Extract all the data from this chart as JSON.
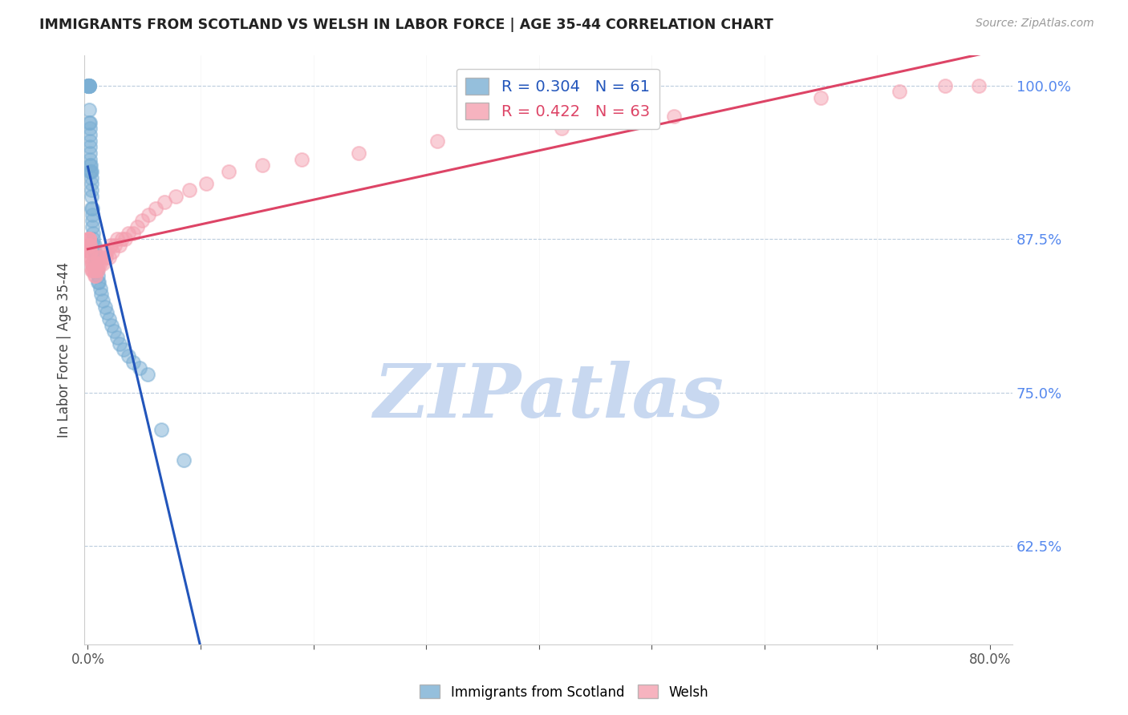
{
  "title": "IMMIGRANTS FROM SCOTLAND VS WELSH IN LABOR FORCE | AGE 35-44 CORRELATION CHART",
  "source": "Source: ZipAtlas.com",
  "ylabel": "In Labor Force | Age 35-44",
  "ylim": [
    0.545,
    1.025
  ],
  "xlim": [
    -0.003,
    0.82
  ],
  "yticks_right": [
    0.625,
    0.75,
    0.875,
    1.0
  ],
  "ytick_right_labels": [
    "62.5%",
    "75.0%",
    "87.5%",
    "100.0%"
  ],
  "legend_blue_r": "R = 0.304",
  "legend_blue_n": "N = 61",
  "legend_pink_r": "R = 0.422",
  "legend_pink_n": "N = 63",
  "blue_color": "#7BAFD4",
  "pink_color": "#F4A0B0",
  "trend_blue_color": "#2255BB",
  "trend_pink_color": "#DD4466",
  "watermark": "ZIPatlas",
  "watermark_color": "#C8D8F0",
  "scotland_x": [
    0.0005,
    0.0005,
    0.0005,
    0.0005,
    0.0005,
    0.0005,
    0.0008,
    0.001,
    0.001,
    0.001,
    0.0012,
    0.0012,
    0.0015,
    0.0015,
    0.0015,
    0.0015,
    0.002,
    0.002,
    0.002,
    0.002,
    0.002,
    0.0025,
    0.0025,
    0.003,
    0.003,
    0.003,
    0.003,
    0.003,
    0.003,
    0.004,
    0.004,
    0.004,
    0.004,
    0.005,
    0.005,
    0.005,
    0.006,
    0.006,
    0.007,
    0.007,
    0.008,
    0.009,
    0.009,
    0.01,
    0.011,
    0.012,
    0.013,
    0.015,
    0.017,
    0.019,
    0.021,
    0.023,
    0.026,
    0.028,
    0.032,
    0.036,
    0.04,
    0.046,
    0.053,
    0.065,
    0.085
  ],
  "scotland_y": [
    1.0,
    1.0,
    1.0,
    1.0,
    1.0,
    1.0,
    1.0,
    1.0,
    1.0,
    1.0,
    0.98,
    0.97,
    0.97,
    0.965,
    0.96,
    0.955,
    0.95,
    0.945,
    0.94,
    0.935,
    0.93,
    0.935,
    0.93,
    0.93,
    0.925,
    0.92,
    0.915,
    0.91,
    0.9,
    0.9,
    0.895,
    0.89,
    0.885,
    0.88,
    0.875,
    0.87,
    0.87,
    0.865,
    0.86,
    0.855,
    0.85,
    0.845,
    0.84,
    0.84,
    0.835,
    0.83,
    0.825,
    0.82,
    0.815,
    0.81,
    0.805,
    0.8,
    0.795,
    0.79,
    0.785,
    0.78,
    0.775,
    0.77,
    0.765,
    0.72,
    0.695
  ],
  "welsh_x": [
    0.0005,
    0.0005,
    0.0008,
    0.001,
    0.001,
    0.0012,
    0.0015,
    0.0015,
    0.002,
    0.002,
    0.002,
    0.0025,
    0.003,
    0.003,
    0.003,
    0.004,
    0.004,
    0.005,
    0.005,
    0.006,
    0.006,
    0.007,
    0.007,
    0.008,
    0.008,
    0.009,
    0.01,
    0.01,
    0.011,
    0.012,
    0.013,
    0.015,
    0.016,
    0.017,
    0.019,
    0.02,
    0.022,
    0.024,
    0.026,
    0.028,
    0.03,
    0.033,
    0.036,
    0.04,
    0.044,
    0.048,
    0.054,
    0.06,
    0.068,
    0.078,
    0.09,
    0.105,
    0.125,
    0.155,
    0.19,
    0.24,
    0.31,
    0.42,
    0.52,
    0.65,
    0.72,
    0.76,
    0.79
  ],
  "welsh_y": [
    0.875,
    0.87,
    0.875,
    0.875,
    0.87,
    0.875,
    0.87,
    0.865,
    0.87,
    0.865,
    0.86,
    0.865,
    0.86,
    0.855,
    0.85,
    0.855,
    0.85,
    0.855,
    0.85,
    0.85,
    0.845,
    0.85,
    0.845,
    0.855,
    0.85,
    0.85,
    0.86,
    0.855,
    0.855,
    0.86,
    0.855,
    0.865,
    0.86,
    0.865,
    0.86,
    0.87,
    0.865,
    0.87,
    0.875,
    0.87,
    0.875,
    0.875,
    0.88,
    0.88,
    0.885,
    0.89,
    0.895,
    0.9,
    0.905,
    0.91,
    0.915,
    0.92,
    0.93,
    0.935,
    0.94,
    0.945,
    0.955,
    0.965,
    0.975,
    0.99,
    0.995,
    1.0,
    1.0
  ],
  "trend_blue_x_start": 0.0,
  "trend_blue_x_end": 0.8,
  "trend_pink_x_start": 0.0,
  "trend_pink_x_end": 0.8
}
